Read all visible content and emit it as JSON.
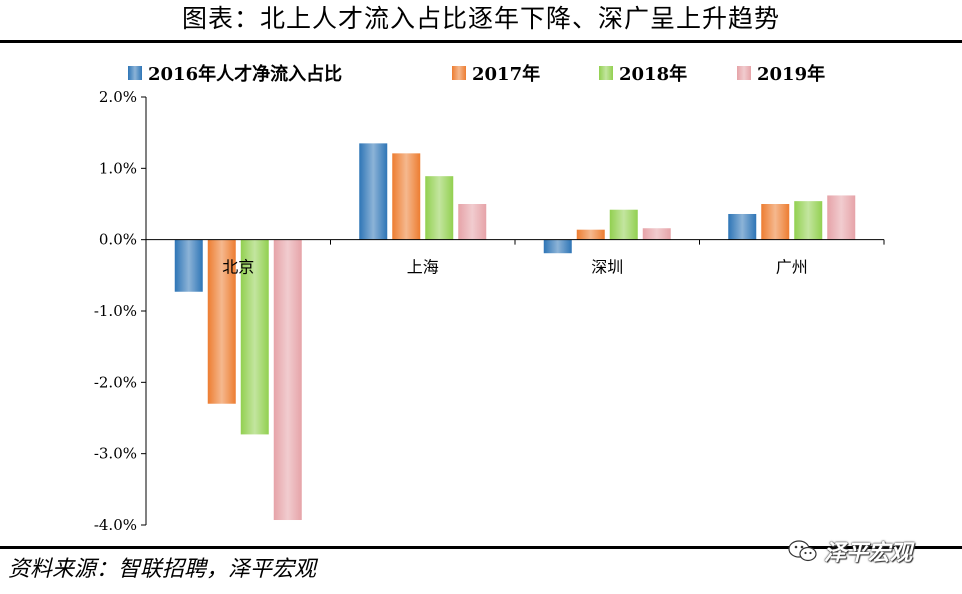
{
  "header": {
    "title": "图表：北上人才流入占比逐年下降、深广呈上升趋势"
  },
  "footer": {
    "source": "资料来源：智联招聘，泽平宏观",
    "watermark": "泽平宏观"
  },
  "chart_data": {
    "type": "bar",
    "title": "图表：北上人才流入占比逐年下降、深广呈上升趋势",
    "categories": [
      "北京",
      "上海",
      "深圳",
      "广州"
    ],
    "series": [
      {
        "name": "2016年人才净流入占比",
        "color": "#2e75b6",
        "values": [
          -0.73,
          1.35,
          -0.19,
          0.36
        ]
      },
      {
        "name": "2017年",
        "color": "#ed7d31",
        "values": [
          -2.3,
          1.21,
          0.14,
          0.5
        ]
      },
      {
        "name": "2018年",
        "color": "#92d050",
        "values": [
          -2.73,
          0.89,
          0.42,
          0.54
        ]
      },
      {
        "name": "2019年",
        "color": "#e6a3a8",
        "values": [
          -3.93,
          0.5,
          0.16,
          0.62
        ]
      }
    ],
    "ylim": [
      -4.0,
      2.0
    ],
    "yticks": [
      2.0,
      1.0,
      0.0,
      -1.0,
      -2.0,
      -3.0,
      -4.0
    ],
    "ytick_labels": [
      "2.0%",
      "1.0%",
      "0.0%",
      "-1.0%",
      "-2.0%",
      "-3.0%",
      "-4.0%"
    ],
    "xlabel": "",
    "ylabel": "",
    "legend_position": "top"
  }
}
